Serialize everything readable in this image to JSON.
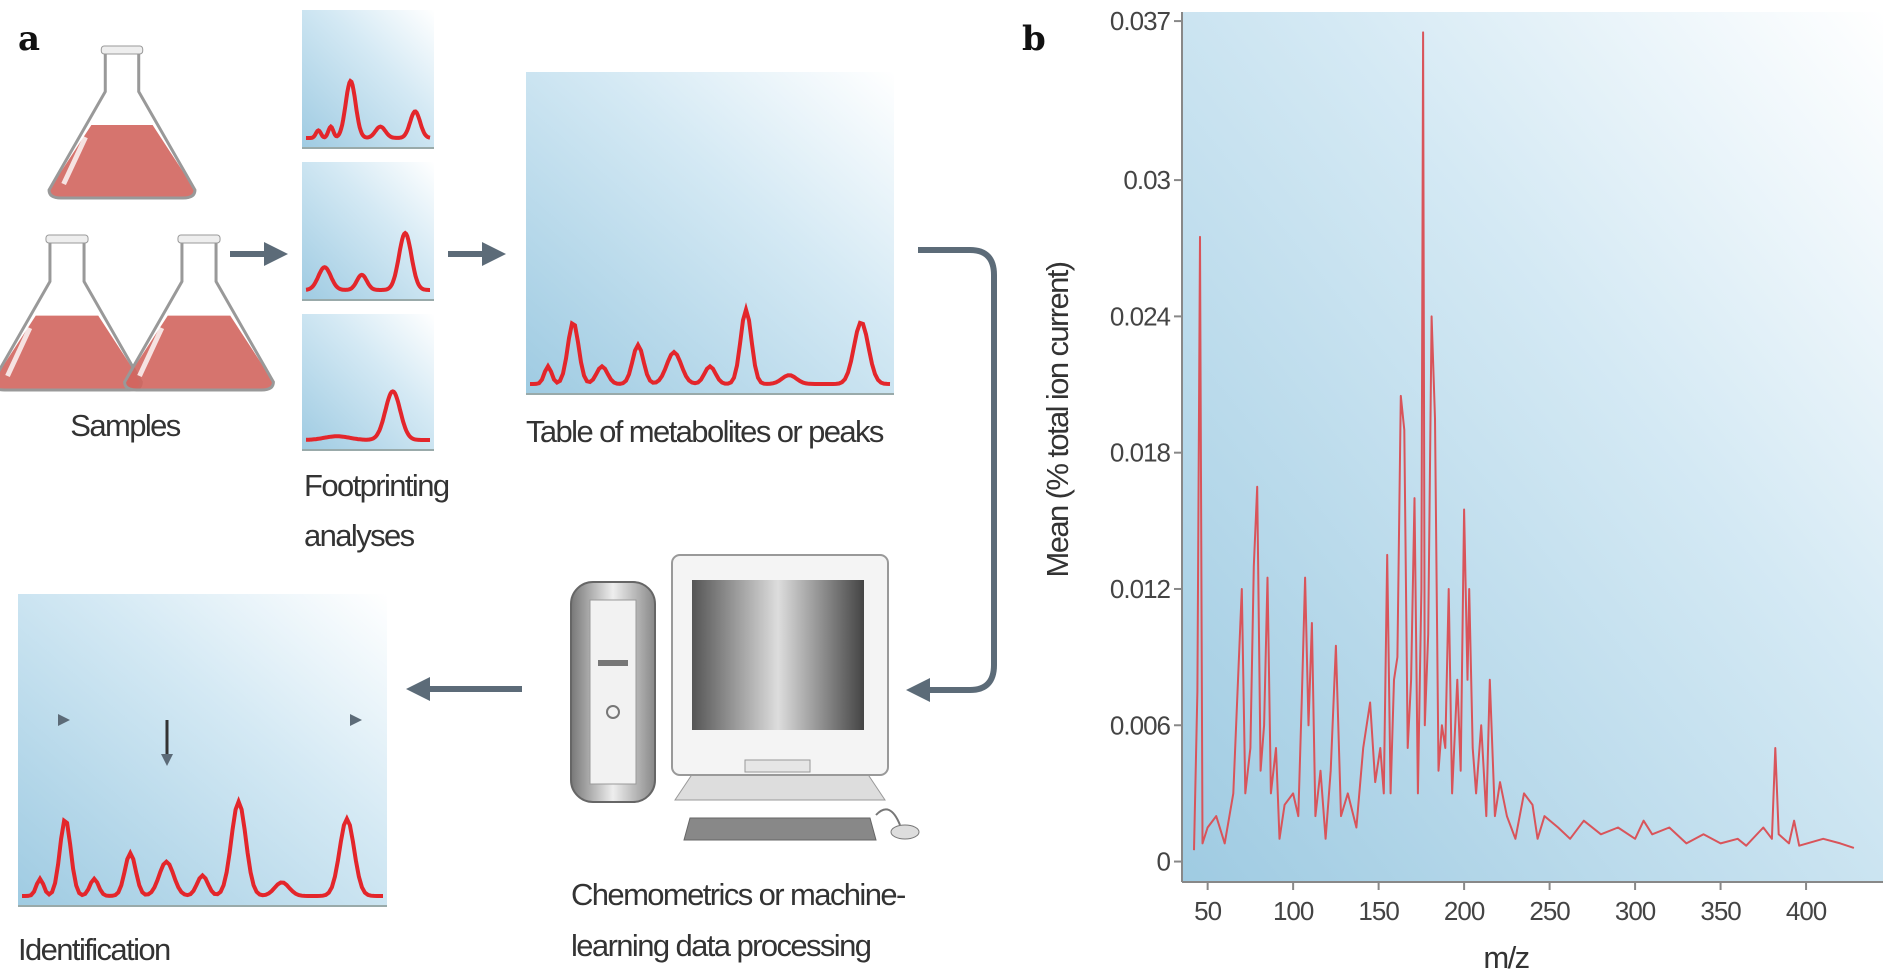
{
  "panel_a": {
    "label": "a",
    "samples": "Samples",
    "footprinting": [
      "Footprinting",
      "analyses"
    ],
    "table": "Table of metabolites or peaks",
    "processing": [
      "Chemometrics or machine-",
      "learning data processing"
    ],
    "identification": "Identification"
  },
  "chart_data": {
    "type": "line",
    "label": "b",
    "xlabel": "m/z",
    "ylabel": "Mean (% total ion current)",
    "color": "#d9545a",
    "xlim": [
      35,
      445
    ],
    "xticks": [
      50,
      100,
      150,
      200,
      250,
      300,
      350,
      400
    ],
    "ylim": [
      -0.0009,
      0.0374
    ],
    "yticks": [
      0,
      0.006,
      0.012,
      0.018,
      0.024,
      0.03,
      0.037
    ],
    "x": [
      42,
      44,
      45.5,
      47,
      50,
      55,
      60,
      65,
      70,
      72,
      75,
      77,
      79,
      81,
      83,
      85,
      87,
      90,
      92,
      95,
      100,
      103,
      105,
      107,
      109,
      111,
      113,
      116,
      119,
      122,
      125,
      128,
      132,
      137,
      141,
      145,
      148,
      151,
      153,
      155,
      157,
      159,
      161,
      163,
      165,
      167,
      169,
      171,
      173,
      175,
      176,
      177,
      179,
      181,
      183,
      185,
      187,
      189,
      191,
      193,
      196,
      198,
      200,
      202,
      203,
      205,
      207,
      210,
      213,
      215,
      218,
      221,
      225,
      230,
      235,
      240,
      243,
      247,
      255,
      262,
      270,
      280,
      290,
      300,
      305,
      310,
      320,
      330,
      340,
      350,
      360,
      365,
      375,
      380,
      382,
      384,
      390,
      393,
      396,
      410,
      420,
      428
    ],
    "values": [
      0.0005,
      0.0075,
      0.0275,
      0.0008,
      0.0015,
      0.002,
      0.0008,
      0.003,
      0.012,
      0.003,
      0.005,
      0.013,
      0.0165,
      0.004,
      0.006,
      0.0125,
      0.003,
      0.005,
      0.001,
      0.0025,
      0.003,
      0.002,
      0.007,
      0.0125,
      0.006,
      0.0105,
      0.002,
      0.004,
      0.001,
      0.004,
      0.0095,
      0.002,
      0.003,
      0.0015,
      0.005,
      0.007,
      0.0035,
      0.005,
      0.003,
      0.0135,
      0.003,
      0.008,
      0.009,
      0.0205,
      0.019,
      0.005,
      0.008,
      0.016,
      0.003,
      0.012,
      0.0365,
      0.006,
      0.01,
      0.024,
      0.0195,
      0.004,
      0.006,
      0.005,
      0.012,
      0.003,
      0.008,
      0.004,
      0.0155,
      0.008,
      0.012,
      0.005,
      0.003,
      0.006,
      0.002,
      0.008,
      0.002,
      0.0035,
      0.002,
      0.001,
      0.003,
      0.0025,
      0.001,
      0.002,
      0.0015,
      0.001,
      0.0018,
      0.0012,
      0.0015,
      0.001,
      0.0018,
      0.0012,
      0.0015,
      0.0008,
      0.0012,
      0.0008,
      0.001,
      0.0007,
      0.0015,
      0.001,
      0.005,
      0.0012,
      0.0008,
      0.0018,
      0.0007,
      0.001,
      0.0008,
      0.0006
    ]
  }
}
